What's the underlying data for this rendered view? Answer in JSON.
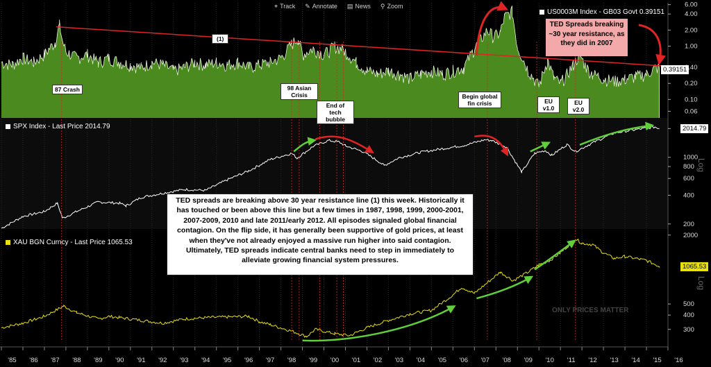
{
  "toolbar": {
    "track": "Track",
    "annotate": "Annotate",
    "news": "News",
    "zoom": "Zoom"
  },
  "chart_data": [
    {
      "type": "area",
      "series": [
        {
          "name": "US0003M Index - GB03 Govt 0.39151"
        }
      ],
      "last_value_label": "0.39151",
      "x": [
        1985.0,
        1985.5,
        1986.0,
        1986.5,
        1987.0,
        1987.5,
        1987.7,
        1987.85,
        1988.0,
        1988.5,
        1989.0,
        1989.5,
        1990.0,
        1990.5,
        1991.0,
        1991.5,
        1992.0,
        1992.5,
        1993.0,
        1993.5,
        1994.0,
        1994.5,
        1995.0,
        1995.5,
        1996.0,
        1996.5,
        1997.0,
        1997.5,
        1998.0,
        1998.5,
        1998.8,
        1999.0,
        1999.5,
        2000.0,
        2000.5,
        2000.8,
        2001.0,
        2001.5,
        2002.0,
        2002.5,
        2003.0,
        2003.5,
        2004.0,
        2004.5,
        2005.0,
        2005.5,
        2006.0,
        2006.5,
        2007.0,
        2007.6,
        2007.9,
        2008.2,
        2008.4,
        2008.75,
        2009.0,
        2009.5,
        2010.0,
        2010.4,
        2010.7,
        2011.0,
        2011.3,
        2011.6,
        2011.9,
        2012.2,
        2012.5,
        2013.0,
        2013.5,
        2014.0,
        2014.5,
        2015.0,
        2015.4,
        2015.6
      ],
      "values": [
        0.5,
        0.45,
        0.6,
        0.5,
        0.7,
        1.2,
        2.5,
        1.2,
        0.8,
        0.6,
        0.7,
        0.5,
        0.6,
        0.5,
        0.45,
        0.4,
        0.5,
        0.45,
        0.35,
        0.4,
        0.5,
        0.45,
        0.5,
        0.45,
        0.5,
        0.4,
        0.45,
        0.5,
        0.6,
        1.1,
        1.4,
        0.7,
        0.9,
        0.7,
        1.0,
        0.9,
        0.8,
        0.5,
        0.35,
        0.3,
        0.35,
        0.3,
        0.25,
        0.3,
        0.35,
        0.3,
        0.35,
        0.4,
        0.9,
        2.0,
        1.5,
        1.8,
        3.5,
        4.5,
        1.0,
        0.35,
        0.18,
        0.55,
        0.25,
        0.2,
        0.3,
        0.45,
        0.7,
        0.4,
        0.3,
        0.25,
        0.22,
        0.24,
        0.27,
        0.3,
        0.39,
        0.39151
      ],
      "yticks": [
        "0.06",
        "0.10",
        "0.20",
        "0.40",
        "1.00",
        "2.00",
        "4.00",
        "6.00"
      ],
      "scale": "log",
      "annotations": {
        "line_label": "(1)",
        "box": "TED Spreads breaking ~30 year resistance, as they did in 2007",
        "labels": [
          "87 Crash",
          "98 Asian Crisis",
          "End of tech bubble",
          "Begin global fin crisis",
          "EU v1.0",
          "EU v2.0"
        ]
      }
    },
    {
      "type": "line",
      "series": [
        {
          "name": "SPX Index - Last Price 2014.79"
        }
      ],
      "last_value_label": "2014.79",
      "x": [
        1985.0,
        1986.0,
        1987.0,
        1987.6,
        1987.85,
        1988.5,
        1989.5,
        1990.5,
        1990.8,
        1991.5,
        1992.5,
        1993.5,
        1994.5,
        1995.5,
        1996.5,
        1997.5,
        1998.5,
        1998.75,
        1999.5,
        2000.2,
        2000.7,
        2001.0,
        2001.8,
        2002.5,
        2002.8,
        2003.5,
        2004.5,
        2005.5,
        2006.5,
        2007.5,
        2007.8,
        2008.5,
        2008.9,
        2009.2,
        2009.8,
        2010.3,
        2010.6,
        2011.3,
        2011.7,
        2012.5,
        2013.5,
        2014.5,
        2015.4,
        2015.6
      ],
      "values": [
        180,
        240,
        270,
        330,
        230,
        270,
        340,
        330,
        310,
        380,
        420,
        460,
        450,
        580,
        720,
        950,
        1100,
        980,
        1300,
        1500,
        1450,
        1320,
        1150,
        920,
        820,
        990,
        1130,
        1230,
        1330,
        1530,
        1500,
        1280,
        900,
        700,
        1100,
        1180,
        1050,
        1360,
        1150,
        1420,
        1800,
        1950,
        2080,
        2014.79
      ],
      "yticks": [
        "200",
        "400",
        "600",
        "800",
        "1000",
        "2000"
      ],
      "scale": "log"
    },
    {
      "type": "line",
      "series": [
        {
          "name": "XAU BGN Curncy - Last Price 1065.53"
        }
      ],
      "last_value_label": "1065.53",
      "x": [
        1985.0,
        1986.0,
        1987.0,
        1987.9,
        1988.5,
        1989.5,
        1990.0,
        1990.5,
        1991.5,
        1992.5,
        1993.5,
        1994.5,
        1995.5,
        1996.5,
        1997.0,
        1997.5,
        1998.5,
        1999.2,
        1999.6,
        2000.5,
        2001.2,
        2002.0,
        2003.0,
        2004.0,
        2005.0,
        2006.0,
        2006.4,
        2007.0,
        2008.2,
        2008.8,
        2009.5,
        2010.0,
        2010.5,
        2011.0,
        2011.7,
        2012.0,
        2012.5,
        2013.0,
        2013.5,
        2014.0,
        2014.5,
        2015.0,
        2015.6
      ],
      "values": [
        310,
        340,
        390,
        480,
        420,
        370,
        390,
        380,
        360,
        340,
        370,
        380,
        385,
        390,
        350,
        330,
        290,
        260,
        300,
        275,
        265,
        310,
        360,
        410,
        440,
        600,
        700,
        620,
        950,
        800,
        950,
        1100,
        1200,
        1400,
        1850,
        1700,
        1650,
        1400,
        1250,
        1300,
        1250,
        1200,
        1065.53
      ],
      "yticks": [
        "300",
        "400",
        "500",
        "2000"
      ],
      "scale": "log"
    }
  ],
  "x_axis_labels": [
    "'85",
    "'86",
    "'87",
    "'88",
    "'89",
    "'90",
    "'91",
    "'92",
    "'93",
    "'94",
    "'95",
    "'96",
    "'97",
    "'98",
    "'99",
    "'00",
    "'01",
    "'02",
    "'03",
    "'04",
    "'05",
    "'06",
    "'07",
    "'08",
    "'09",
    "'10",
    "'11",
    "'12",
    "'13",
    "'14",
    "'15",
    "'16"
  ],
  "axis_side_label": "Log",
  "callout_text": "TED spreads are breaking above 30 year resistance line (1) this week. Historically it has touched or been above this line but a few times in 1987, 1998, 1999, 2000-2001, 2007-2009, 2010 and late 2011/early 2012. All episodes signaled global financial contagion. On the flip side, it has generally been supportive of gold prices, at least when they've not already enjoyed a massive run higher into said contagion. Ultimately, TED spreads indicate central banks need to step in immediately to alleviate growing financial system pressures.",
  "watermark": "ONLY PRICES MATTER",
  "colors": {
    "ted_fill": "#4a8a1e",
    "ted_line": "#e8f5d8",
    "spx_line": "#ffffff",
    "gold_line": "#e8e010",
    "resistance": "#e02424",
    "arrow_green": "#5fd03a",
    "arrow_red": "#e02424"
  }
}
